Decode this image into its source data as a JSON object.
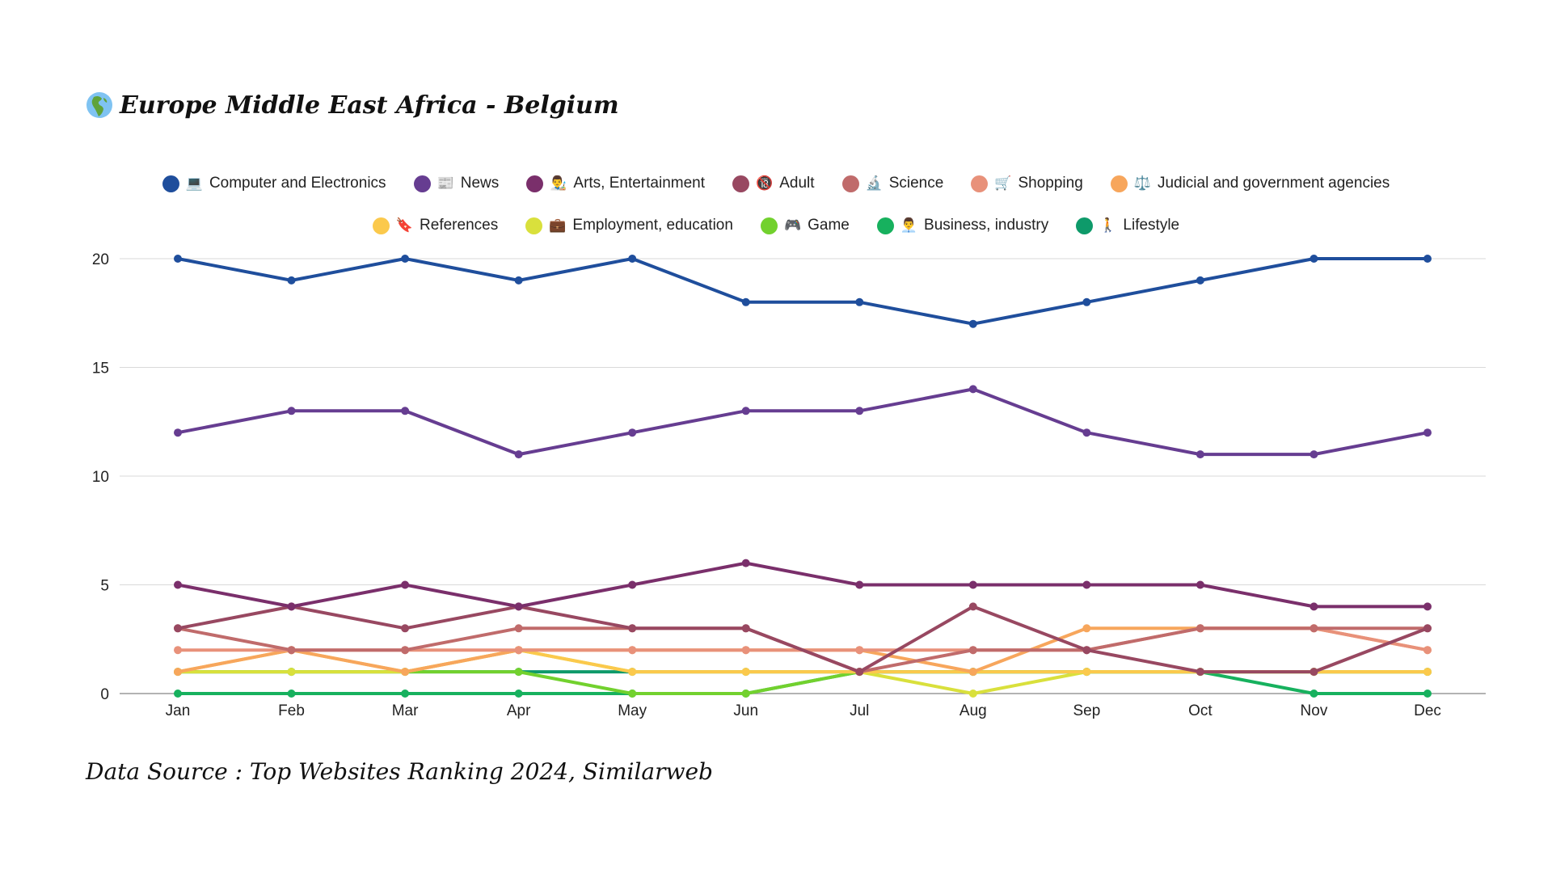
{
  "title": "Europe Middle East Africa - Belgium",
  "title_icon": "globe-europe-africa-icon",
  "source": "Data Source : Top Websites Ranking 2024, Similarweb",
  "chart_data": {
    "type": "line",
    "title": "Europe Middle East Africa - Belgium",
    "xlabel": "",
    "ylabel": "",
    "ylim": [
      0,
      20
    ],
    "yticks": [
      "0",
      "5",
      "10",
      "15",
      "20"
    ],
    "grid": true,
    "legend_position": "top-center",
    "categories": [
      "Jan",
      "Feb",
      "Mar",
      "Apr",
      "May",
      "Jun",
      "Jul",
      "Aug",
      "Sep",
      "Oct",
      "Nov",
      "Dec"
    ],
    "series": [
      {
        "name": "Computer and Electronics",
        "emoji": "💻",
        "color": "#1f4e9c",
        "values": [
          20,
          19,
          20,
          19,
          20,
          18,
          18,
          17,
          18,
          19,
          20,
          20
        ]
      },
      {
        "name": "News",
        "emoji": "📰",
        "color": "#663d91",
        "values": [
          12,
          13,
          13,
          11,
          12,
          13,
          13,
          14,
          12,
          11,
          11,
          12
        ]
      },
      {
        "name": "Arts, Entertainment",
        "emoji": "👨‍🎨",
        "color": "#7a2f6b",
        "values": [
          5,
          4,
          5,
          4,
          5,
          6,
          5,
          5,
          5,
          5,
          4,
          4
        ]
      },
      {
        "name": "Adult",
        "emoji": "🔞",
        "color": "#984861",
        "values": [
          3,
          4,
          3,
          4,
          3,
          3,
          1,
          4,
          2,
          1,
          1,
          3
        ]
      },
      {
        "name": "Science",
        "emoji": "🔬",
        "color": "#c06b6b",
        "values": [
          3,
          2,
          2,
          3,
          3,
          3,
          1,
          2,
          2,
          3,
          3,
          3
        ]
      },
      {
        "name": "Shopping",
        "emoji": "🛒",
        "color": "#e8917a",
        "values": [
          2,
          2,
          2,
          2,
          2,
          2,
          2,
          2,
          2,
          3,
          3,
          2
        ]
      },
      {
        "name": "Judicial and government agencies",
        "emoji": "⚖️",
        "color": "#f7a65c",
        "values": [
          1,
          2,
          1,
          2,
          2,
          2,
          2,
          1,
          3,
          3,
          3,
          2
        ]
      },
      {
        "name": "References",
        "emoji": "🔖",
        "color": "#fbc94c",
        "values": [
          1,
          2,
          1,
          2,
          1,
          1,
          1,
          1,
          1,
          1,
          1,
          1
        ]
      },
      {
        "name": "Employment, education",
        "emoji": "💼",
        "color": "#d9e03c",
        "values": [
          1,
          1,
          1,
          2,
          1,
          1,
          1,
          0,
          1,
          1,
          1,
          1
        ]
      },
      {
        "name": "Game",
        "emoji": "🎮",
        "color": "#72d12e",
        "values": [
          1,
          1,
          1,
          1,
          0,
          0,
          1,
          1,
          1,
          1,
          1,
          1
        ]
      },
      {
        "name": "Business, industry",
        "emoji": "👨‍💼",
        "color": "#17b15e",
        "values": [
          0,
          0,
          0,
          0,
          0,
          0,
          1,
          1,
          1,
          1,
          0,
          0
        ]
      },
      {
        "name": "Lifestyle",
        "emoji": "🚶",
        "color": "#0e9a6a",
        "values": [
          1,
          1,
          1,
          1,
          1,
          1,
          1,
          1,
          1,
          1,
          1,
          1
        ]
      }
    ]
  }
}
